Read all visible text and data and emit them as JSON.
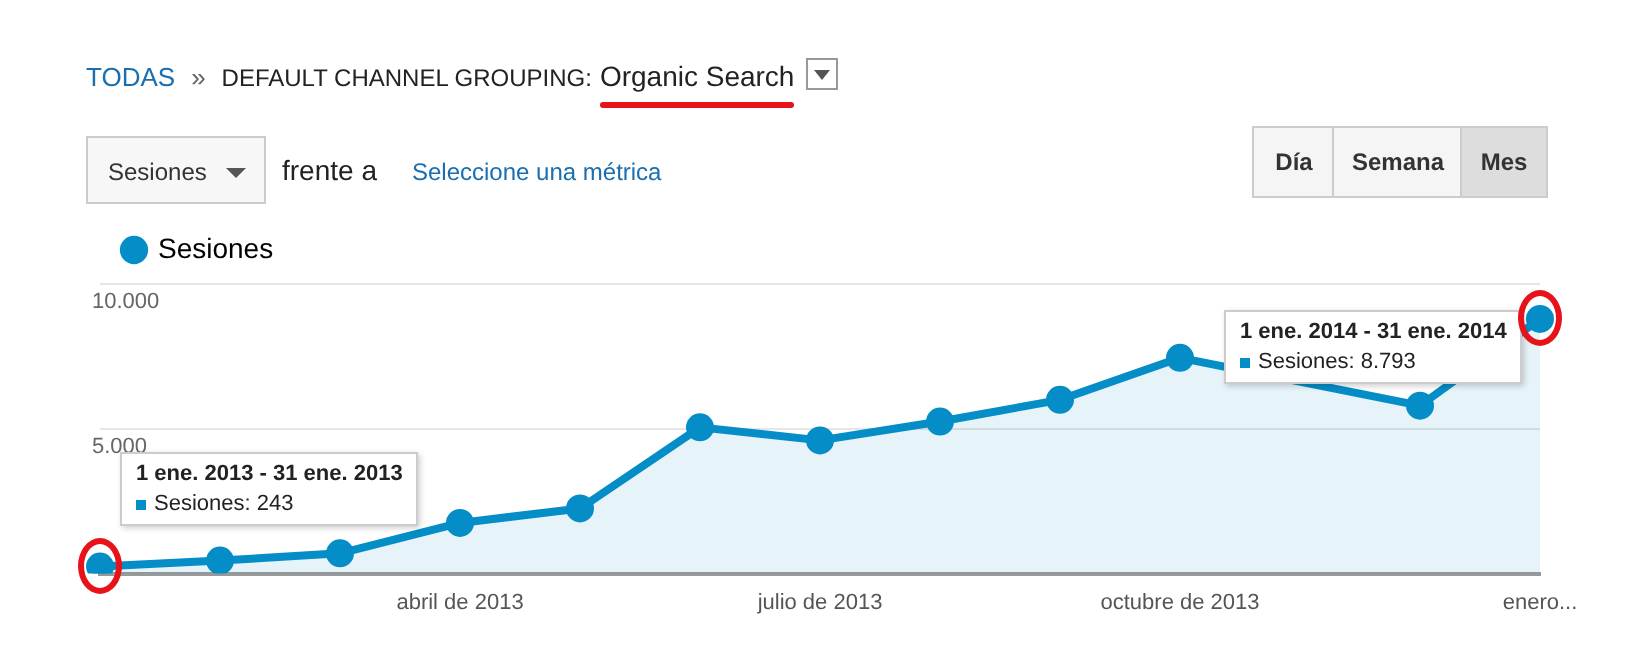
{
  "chart_data": {
    "type": "area",
    "categories": [
      null,
      null,
      null,
      "abril de 2013",
      null,
      null,
      "julio de 2013",
      null,
      null,
      "octubre de 2013",
      null,
      null,
      "enero..."
    ],
    "series": [
      {
        "name": "Sesiones",
        "color": "#058dc7",
        "values": [
          243,
          450,
          700,
          1750,
          2250,
          5050,
          4600,
          5250,
          6000,
          7450,
          null,
          5800,
          8793
        ]
      }
    ],
    "ylim": [
      0,
      10000
    ],
    "yticks": [
      {
        "value": 5000,
        "label": "5.000"
      },
      {
        "value": 10000,
        "label": "10.000"
      }
    ],
    "grid": "y",
    "legend": "top left",
    "marker": "circle",
    "annotations": [
      "TODAS",
      "»",
      "DEFAULT CHANNEL GROUPING:",
      "Organic Search",
      "Sesiones",
      "frente a",
      "Seleccione una métrica",
      "Día",
      "Semana",
      "Mes",
      "1 ene. 2013 - 31 ene. 2013",
      "Sesiones: 243",
      "1 ene. 2014 - 31 ene. 2014",
      "Sesiones: 8.793"
    ]
  }
}
